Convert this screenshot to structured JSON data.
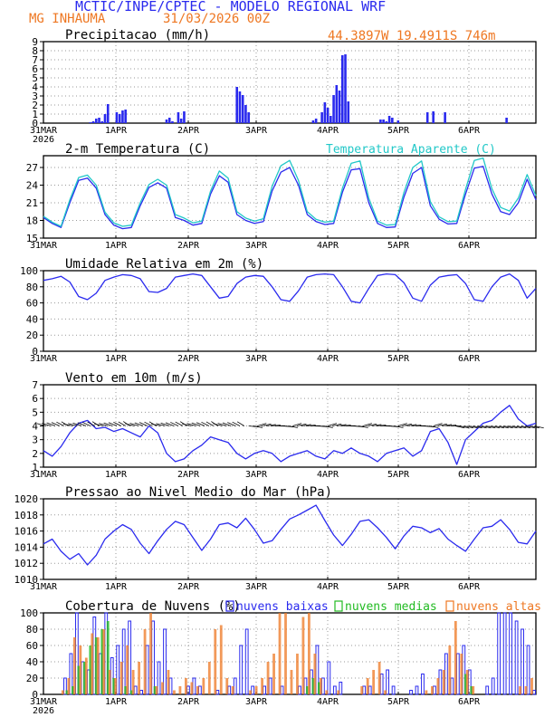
{
  "header": {
    "title": "MCTIC/INPE/CPTEC - MODELO REGIONAL WRF",
    "location": "MG INHAUMA",
    "run": "31/03/2026 00Z",
    "coords": "44.3897W 19.4911S 746m"
  },
  "colors": {
    "blue": "#2a2aee",
    "orange": "#ee7722",
    "cyan": "#22c8c8",
    "green": "#22bb22",
    "grid": "#9a9a9a"
  },
  "chart_data": [
    {
      "type": "bar",
      "title": "Precipitacao (mm/h)",
      "xlabels": [
        "31MAR\n2026",
        "1APR",
        "2APR",
        "3APR",
        "4APR",
        "5APR",
        "6APR"
      ],
      "ylim": [
        0,
        9
      ],
      "yticks": [
        0,
        1,
        2,
        3,
        4,
        5,
        6,
        7,
        8,
        9
      ],
      "x": [
        16,
        17,
        18,
        19,
        20,
        21,
        22,
        25,
        26,
        27,
        28,
        42,
        43,
        44,
        46,
        47,
        48,
        66,
        67,
        68,
        69,
        70,
        92,
        93,
        95,
        96,
        97,
        98,
        99,
        100,
        101,
        102,
        103,
        104,
        115,
        116,
        117,
        118,
        119,
        121,
        131,
        133,
        137,
        158
      ],
      "values": [
        0.1,
        0.2,
        0.5,
        0.6,
        0.2,
        1.0,
        2.1,
        1.2,
        1.0,
        1.4,
        1.5,
        0.4,
        0.6,
        0.2,
        1.2,
        0.5,
        1.3,
        4.0,
        3.5,
        3.1,
        2.0,
        1.2,
        0.3,
        0.5,
        1.2,
        2.3,
        1.7,
        0.8,
        3.1,
        4.2,
        3.6,
        7.5,
        7.6,
        2.4,
        0.4,
        0.4,
        0.2,
        0.8,
        0.6,
        0.3,
        1.2,
        1.3,
        1.2,
        0.6
      ]
    },
    {
      "type": "line",
      "title": "2-m Temperatura (C)",
      "legend": "Temperatura Aparente (C)",
      "xlabels": [
        "31MAR",
        "1APR",
        "2APR",
        "3APR",
        "4APR",
        "5APR",
        "6APR"
      ],
      "ylim": [
        15,
        29
      ],
      "yticks": [
        15,
        18,
        21,
        24,
        27
      ],
      "series": [
        {
          "name": "Temperatura (C)",
          "x": [
            0,
            3,
            6,
            9,
            12,
            15,
            18,
            21,
            24,
            27,
            30,
            33,
            36,
            39,
            42,
            45,
            48,
            51,
            54,
            57,
            60,
            63,
            66,
            69,
            72,
            75,
            78,
            81,
            84,
            87,
            90,
            93,
            96,
            99,
            102,
            105,
            108,
            111,
            114,
            117,
            120,
            123,
            126,
            129,
            132,
            135,
            138,
            141,
            144,
            147,
            150,
            153,
            156,
            159,
            162,
            165,
            168
          ],
          "values": [
            18.5,
            17.5,
            16.8,
            21.0,
            24.8,
            25.2,
            23.5,
            19.0,
            17.2,
            16.6,
            16.8,
            20.5,
            23.6,
            24.4,
            23.5,
            18.5,
            18.0,
            17.2,
            17.5,
            22.5,
            25.6,
            24.5,
            19.0,
            18.0,
            17.5,
            17.8,
            23.0,
            26.2,
            27.0,
            24.0,
            19.0,
            17.8,
            17.3,
            17.5,
            22.8,
            26.6,
            26.8,
            21.0,
            17.5,
            16.8,
            16.9,
            22.0,
            26.0,
            27.0,
            20.5,
            18.2,
            17.4,
            17.5,
            22.5,
            26.9,
            27.2,
            22.5,
            19.5,
            19.0,
            21.0,
            25.0,
            21.5
          ]
        },
        {
          "name": "Temperatura Aparente (C)",
          "x": [
            0,
            3,
            6,
            9,
            12,
            15,
            18,
            21,
            24,
            27,
            30,
            33,
            36,
            39,
            42,
            45,
            48,
            51,
            54,
            57,
            60,
            63,
            66,
            69,
            72,
            75,
            78,
            81,
            84,
            87,
            90,
            93,
            96,
            99,
            102,
            105,
            108,
            111,
            114,
            117,
            120,
            123,
            126,
            129,
            132,
            135,
            138,
            141,
            144,
            147,
            150,
            153,
            156,
            159,
            162,
            165,
            168
          ],
          "values": [
            18.7,
            17.7,
            17.0,
            21.5,
            25.3,
            25.7,
            24.0,
            19.4,
            17.6,
            17.0,
            17.2,
            21.0,
            24.1,
            25.0,
            24.0,
            19.0,
            18.4,
            17.6,
            17.9,
            23.0,
            26.4,
            25.2,
            19.5,
            18.4,
            17.9,
            18.3,
            23.8,
            27.3,
            28.2,
            24.8,
            19.5,
            18.2,
            17.7,
            17.9,
            23.5,
            27.7,
            28.1,
            21.8,
            17.9,
            17.2,
            17.3,
            22.8,
            27.0,
            28.1,
            21.2,
            18.6,
            17.8,
            17.9,
            23.3,
            28.2,
            28.6,
            23.4,
            20.2,
            19.6,
            21.8,
            25.8,
            22.2
          ]
        }
      ]
    },
    {
      "type": "line",
      "title": "Umidade Relativa em 2m (%)",
      "xlabels": [
        "31MAR",
        "1APR",
        "2APR",
        "3APR",
        "4APR",
        "5APR",
        "6APR"
      ],
      "ylim": [
        0,
        100
      ],
      "yticks": [
        0,
        20,
        40,
        60,
        80,
        100
      ],
      "series": [
        {
          "name": "Umidade Relativa",
          "x": [
            0,
            3,
            6,
            9,
            12,
            15,
            18,
            21,
            24,
            27,
            30,
            33,
            36,
            39,
            42,
            45,
            48,
            51,
            54,
            57,
            60,
            63,
            66,
            69,
            72,
            75,
            78,
            81,
            84,
            87,
            90,
            93,
            96,
            99,
            102,
            105,
            108,
            111,
            114,
            117,
            120,
            123,
            126,
            129,
            132,
            135,
            138,
            141,
            144,
            147,
            150,
            153,
            156,
            159,
            162,
            165,
            168
          ],
          "values": [
            88,
            90,
            93,
            86,
            68,
            64,
            72,
            88,
            92,
            95,
            94,
            90,
            74,
            73,
            78,
            92,
            94,
            96,
            94,
            80,
            66,
            68,
            84,
            92,
            94,
            93,
            80,
            64,
            62,
            75,
            92,
            95,
            96,
            95,
            80,
            62,
            60,
            78,
            94,
            96,
            95,
            85,
            66,
            62,
            82,
            92,
            94,
            95,
            84,
            64,
            62,
            80,
            92,
            96,
            88,
            66,
            78
          ]
        }
      ]
    },
    {
      "type": "line",
      "title": "Vento em 10m (m/s)",
      "xlabels": [
        "31MAR",
        "1APR",
        "2APR",
        "3APR",
        "4APR",
        "5APR",
        "6APR"
      ],
      "ylim": [
        1,
        7
      ],
      "yticks": [
        1,
        2,
        3,
        4,
        5,
        6,
        7
      ],
      "series": [
        {
          "name": "Vento",
          "x": [
            0,
            3,
            6,
            9,
            12,
            15,
            18,
            21,
            24,
            27,
            30,
            33,
            36,
            39,
            42,
            45,
            48,
            51,
            54,
            57,
            60,
            63,
            66,
            69,
            72,
            75,
            78,
            81,
            84,
            87,
            90,
            93,
            96,
            99,
            102,
            105,
            108,
            111,
            114,
            117,
            120,
            123,
            126,
            129,
            132,
            135,
            138,
            141,
            144,
            147,
            150,
            153,
            156,
            159,
            162,
            165,
            168
          ],
          "values": [
            2.2,
            1.8,
            2.5,
            3.5,
            4.2,
            4.4,
            3.8,
            3.9,
            3.6,
            3.8,
            3.5,
            3.2,
            4.0,
            3.5,
            2.0,
            1.4,
            1.6,
            2.2,
            2.6,
            3.2,
            3.0,
            2.8,
            2.0,
            1.6,
            2.0,
            2.2,
            2.0,
            1.4,
            1.8,
            2.0,
            2.2,
            1.8,
            1.6,
            2.2,
            2.0,
            2.4,
            2.0,
            1.8,
            1.4,
            2.0,
            2.2,
            2.4,
            1.8,
            2.2,
            3.6,
            3.8,
            2.8,
            1.2,
            3.0,
            3.6,
            4.2,
            4.4,
            5.0,
            5.5,
            4.5,
            4.0,
            4.2
          ]
        }
      ]
    },
    {
      "type": "line",
      "title": "Pressao ao Nivel Medio do Mar (hPa)",
      "xlabels": [
        "31MAR",
        "1APR",
        "2APR",
        "3APR",
        "4APR",
        "5APR",
        "6APR"
      ],
      "ylim": [
        1010,
        1020
      ],
      "yticks": [
        1010,
        1012,
        1014,
        1016,
        1018,
        1020
      ],
      "series": [
        {
          "name": "Pressao",
          "x": [
            0,
            3,
            6,
            9,
            12,
            15,
            18,
            21,
            24,
            27,
            30,
            33,
            36,
            39,
            42,
            45,
            48,
            51,
            54,
            57,
            60,
            63,
            66,
            69,
            72,
            75,
            78,
            81,
            84,
            87,
            90,
            93,
            96,
            99,
            102,
            105,
            108,
            111,
            114,
            117,
            120,
            123,
            126,
            129,
            132,
            135,
            138,
            141,
            144,
            147,
            150,
            153,
            156,
            159,
            162,
            165,
            168
          ],
          "values": [
            1014.4,
            1015.0,
            1013.5,
            1012.5,
            1013.2,
            1011.8,
            1013.0,
            1015.0,
            1016.0,
            1016.8,
            1016.2,
            1014.5,
            1013.2,
            1014.8,
            1016.2,
            1017.2,
            1016.8,
            1015.2,
            1013.6,
            1015.0,
            1016.8,
            1017.0,
            1016.4,
            1017.6,
            1016.2,
            1014.5,
            1014.8,
            1016.2,
            1017.5,
            1018.0,
            1018.6,
            1019.2,
            1017.3,
            1015.5,
            1014.2,
            1015.6,
            1017.2,
            1017.4,
            1016.4,
            1015.2,
            1013.8,
            1015.4,
            1016.6,
            1016.4,
            1015.8,
            1016.3,
            1015.0,
            1014.2,
            1013.5,
            1015.0,
            1016.4,
            1016.6,
            1017.4,
            1016.2,
            1014.6,
            1014.4,
            1016.0
          ]
        }
      ]
    },
    {
      "type": "bar",
      "title": "Cobertura de Nuvens (%)",
      "legend": [
        "nuvens baixas",
        "nuvens medias",
        "nuvens altas"
      ],
      "xlabels": [
        "31MAR\n2026",
        "1APR",
        "2APR",
        "3APR",
        "4APR",
        "5APR",
        "6APR"
      ],
      "ylim": [
        0,
        100
      ],
      "yticks": [
        0,
        20,
        40,
        60,
        80,
        100
      ],
      "x": [
        0,
        2,
        4,
        6,
        8,
        10,
        12,
        14,
        16,
        18,
        20,
        22,
        24,
        26,
        28,
        30,
        32,
        34,
        36,
        38,
        40,
        42,
        44,
        46,
        48,
        50,
        52,
        54,
        56,
        58,
        60,
        62,
        64,
        66,
        68,
        70,
        72,
        74,
        76,
        78,
        80,
        82,
        84,
        86,
        88,
        90,
        92,
        94,
        96,
        98,
        100,
        102,
        104,
        106,
        108,
        110,
        112,
        114,
        116,
        118,
        120,
        122,
        124,
        126,
        128,
        130,
        132,
        134,
        136,
        138,
        140,
        142,
        144,
        146,
        148,
        150,
        152,
        154,
        156,
        158,
        160,
        162,
        164,
        166,
        168
      ],
      "series": [
        {
          "name": "nuvens baixas",
          "values": [
            0,
            0,
            0,
            0,
            20,
            50,
            100,
            40,
            30,
            95,
            50,
            100,
            45,
            60,
            80,
            90,
            10,
            5,
            60,
            90,
            40,
            80,
            20,
            0,
            0,
            10,
            20,
            10,
            0,
            0,
            5,
            0,
            10,
            20,
            60,
            80,
            10,
            0,
            10,
            20,
            0,
            10,
            0,
            0,
            10,
            20,
            30,
            60,
            20,
            40,
            10,
            15,
            0,
            0,
            0,
            10,
            10,
            0,
            25,
            30,
            10,
            0,
            0,
            5,
            10,
            25,
            0,
            10,
            30,
            50,
            20,
            50,
            60,
            30,
            0,
            0,
            10,
            20,
            100,
            100,
            100,
            90,
            80,
            60,
            5
          ]
        },
        {
          "name": "nuvens medias",
          "values": [
            0,
            0,
            0,
            0,
            5,
            10,
            35,
            40,
            60,
            70,
            80,
            90,
            20,
            0,
            10,
            5,
            0,
            0,
            0,
            10,
            0,
            0,
            0,
            0,
            0,
            0,
            0,
            0,
            0,
            0,
            0,
            0,
            0,
            0,
            0,
            0,
            0,
            0,
            0,
            0,
            0,
            0,
            0,
            0,
            0,
            10,
            20,
            15,
            0,
            0,
            0,
            0,
            0,
            0,
            0,
            0,
            0,
            0,
            0,
            0,
            0,
            0,
            0,
            0,
            0,
            0,
            0,
            0,
            0,
            0,
            0,
            0,
            25,
            10,
            0,
            0,
            0,
            0,
            0,
            0,
            0,
            0,
            0,
            0,
            0
          ]
        },
        {
          "name": "nuvens altas",
          "values": [
            0,
            0,
            0,
            5,
            20,
            70,
            60,
            45,
            75,
            70,
            80,
            30,
            20,
            40,
            60,
            30,
            40,
            80,
            100,
            10,
            15,
            30,
            5,
            10,
            20,
            15,
            10,
            20,
            40,
            80,
            85,
            20,
            10,
            0,
            0,
            5,
            10,
            20,
            40,
            50,
            100,
            100,
            30,
            50,
            95,
            100,
            50,
            20,
            5,
            0,
            5,
            0,
            0,
            0,
            10,
            20,
            30,
            40,
            5,
            0,
            0,
            0,
            0,
            0,
            0,
            5,
            10,
            20,
            30,
            60,
            90,
            50,
            30,
            10,
            0,
            0,
            0,
            0,
            0,
            0,
            0,
            10,
            10,
            20,
            0
          ]
        }
      ]
    }
  ]
}
